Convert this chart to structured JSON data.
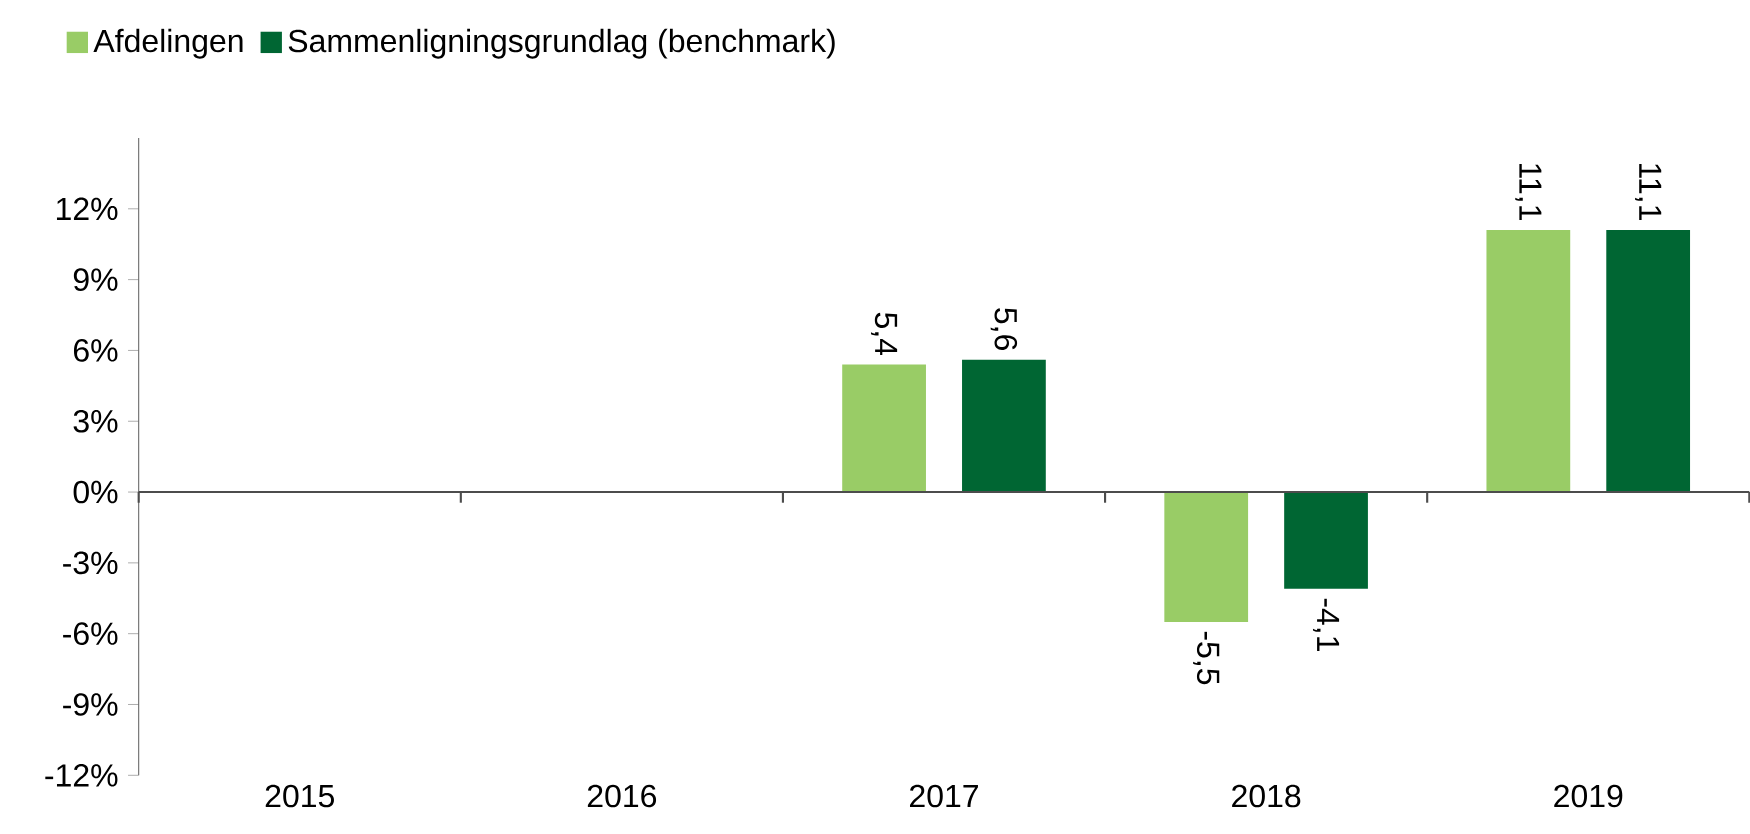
{
  "chart_data": {
    "type": "bar",
    "categories": [
      "2015",
      "2016",
      "2017",
      "2018",
      "2019"
    ],
    "series": [
      {
        "name": "Afdelingen",
        "color": "#99cc66",
        "values": [
          null,
          null,
          5.4,
          -5.5,
          11.1
        ],
        "value_labels": [
          null,
          null,
          "5,4",
          "-5,5",
          "11,1"
        ]
      },
      {
        "name": "Sammenligningsgrundlag (benchmark)",
        "color": "#006633",
        "values": [
          null,
          null,
          5.6,
          -4.1,
          11.1
        ],
        "value_labels": [
          null,
          null,
          "5,6",
          "-4,1",
          "11,1"
        ]
      }
    ],
    "ylim": [
      -12,
      15
    ],
    "yticks": [
      {
        "value": -12,
        "label": "-12%"
      },
      {
        "value": -9,
        "label": "-9%"
      },
      {
        "value": -6,
        "label": "-6%"
      },
      {
        "value": -3,
        "label": "-3%"
      },
      {
        "value": 0,
        "label": "0%"
      },
      {
        "value": 3,
        "label": "3%"
      },
      {
        "value": 6,
        "label": "6%"
      },
      {
        "value": 9,
        "label": "9%"
      },
      {
        "value": 12,
        "label": "12%"
      }
    ],
    "legend": "top left"
  }
}
